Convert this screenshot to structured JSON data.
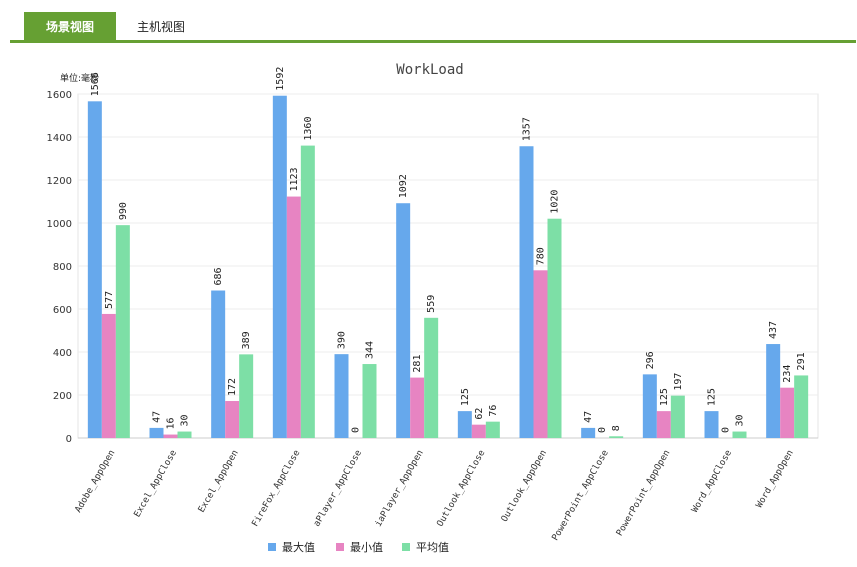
{
  "tabs": [
    {
      "label": "场景视图",
      "active": true
    },
    {
      "label": "主机视图",
      "active": false
    }
  ],
  "colors": {
    "accent": "#66a033",
    "max": "#66a8ec",
    "min": "#e784c2",
    "avg": "#7ddfa6"
  },
  "chart_data": {
    "type": "bar",
    "title": "WorkLoad",
    "unit_label": "单位:毫秒",
    "ylim": [
      0,
      1600
    ],
    "yticks": [
      0,
      200,
      400,
      600,
      800,
      1000,
      1200,
      1400,
      1600
    ],
    "categories": [
      "Adobe_AppOpen",
      "Excel_AppClose",
      "Excel_AppOpen",
      "FireFox_AppClose",
      "MediaPlayer_AppClose",
      "MediaPlayer_AppOpen",
      "Outlook_AppClose",
      "Outlook_AppOpen",
      "PowerPoint_AppClose",
      "PowerPoint_AppOpen",
      "Word_AppClose",
      "Word_AppOpen"
    ],
    "category_labels": [
      "Adobe_AppOpen",
      "Excel_AppClose",
      "Excel_AppOpen",
      "FireFox_AppClose",
      "aPlayer_AppClose",
      "iaPlayer_AppOpen",
      "Outlook_AppClose",
      "Outlook_AppOpen",
      "PowerPoint_AppClose",
      "PowerPoint_AppOpen",
      "Word_AppClose",
      "Word_AppOpen"
    ],
    "series": [
      {
        "name": "最大值",
        "color": "#66a8ec",
        "values": [
          1566,
          47,
          686,
          1592,
          390,
          1092,
          125,
          1357,
          47,
          296,
          125,
          437
        ],
        "labels": [
          "1566",
          "47",
          "686",
          "1592",
          "390",
          "1092",
          "125",
          "1357",
          "47",
          "296",
          "125",
          "437"
        ]
      },
      {
        "name": "最小值",
        "color": "#e784c2",
        "values": [
          577,
          16,
          172,
          1123,
          0,
          281,
          62,
          780,
          0,
          125,
          0,
          234
        ],
        "labels": [
          "577",
          "16",
          "172",
          "1123",
          "0",
          "281",
          "62",
          "780",
          "0",
          "125",
          "0",
          "234"
        ]
      },
      {
        "name": "平均值",
        "color": "#7ddfa6",
        "values": [
          990,
          30,
          389,
          1360,
          344,
          559,
          76,
          1020,
          8,
          197,
          30,
          291
        ],
        "labels": [
          "990",
          "30",
          "389",
          "1360",
          "344",
          "559",
          "76",
          "1020",
          "8",
          "197",
          "30",
          "291"
        ]
      }
    ],
    "legend_position": "bottom-center",
    "grid": true
  }
}
